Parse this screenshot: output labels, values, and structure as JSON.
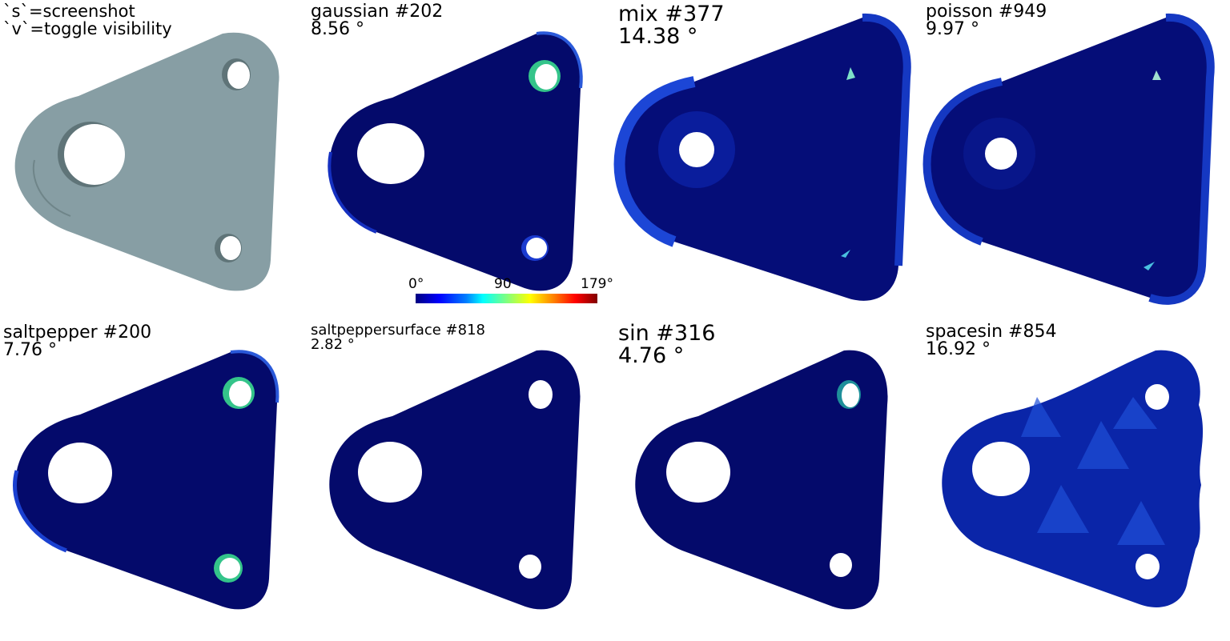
{
  "help": {
    "line1": "`s`=screenshot",
    "line2": "`v`=toggle visibility"
  },
  "panels": [
    {
      "id": "original",
      "title": "",
      "angle": "",
      "color": "#879ea4"
    },
    {
      "id": "gaussian",
      "title": "gaussian #202",
      "angle": "8.56 °",
      "color": "#040a6b"
    },
    {
      "id": "mix",
      "title": "mix #377",
      "angle": "14.38 °",
      "color": "#040a6b"
    },
    {
      "id": "poisson",
      "title": "poisson #949",
      "angle": "9.97 °",
      "color": "#040a6b"
    },
    {
      "id": "saltpepper",
      "title": "saltpepper #200",
      "angle": "7.76 °",
      "color": "#040a6b"
    },
    {
      "id": "saltpeppersurface",
      "title": "saltpeppersurface #818",
      "angle": "2.82 °",
      "color": "#040a6b"
    },
    {
      "id": "sin",
      "title": "sin #316",
      "angle": "4.76 °",
      "color": "#040a6b"
    },
    {
      "id": "spacesin",
      "title": "spacesin #854",
      "angle": "16.92 °",
      "color": "#0a25a8"
    }
  ],
  "colorbar": {
    "min": "0°",
    "mid": "90",
    "max": "179°"
  }
}
